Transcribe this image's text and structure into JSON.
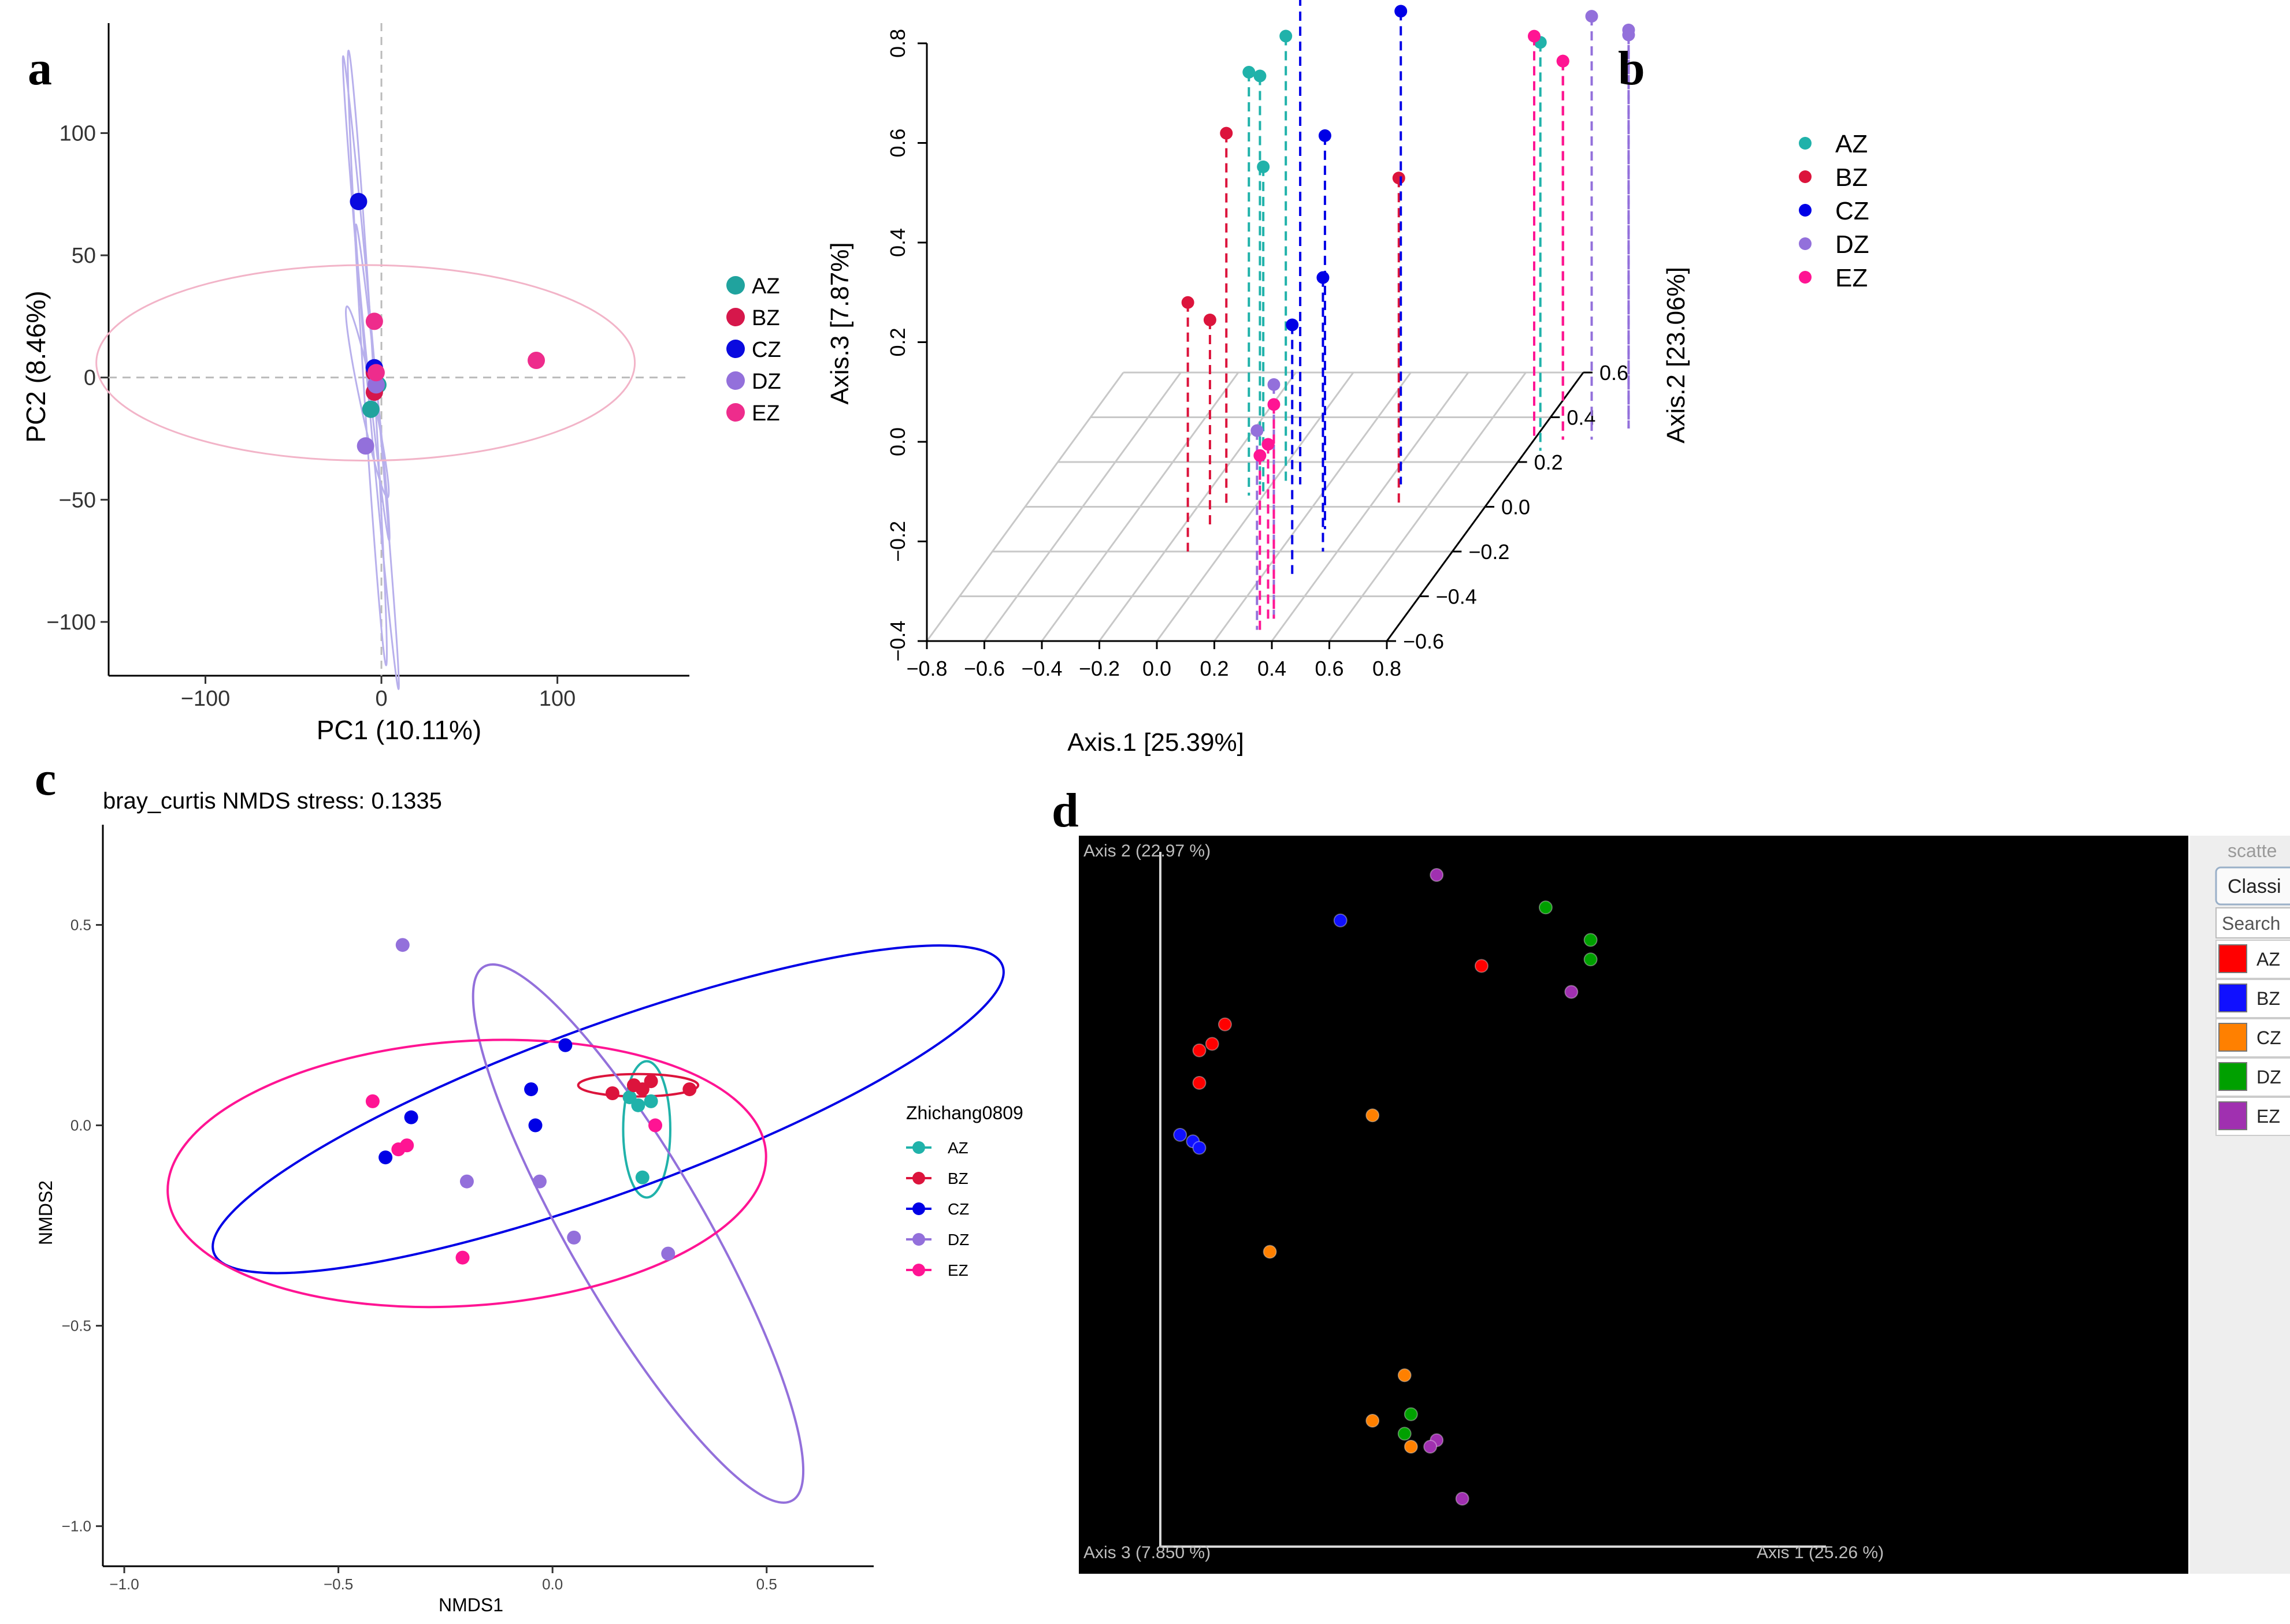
{
  "panels": {
    "a": {
      "label": "a"
    },
    "b": {
      "label": "b"
    },
    "c": {
      "label": "c"
    },
    "d": {
      "label": "d"
    }
  },
  "chart_data": [
    {
      "id": "a",
      "type": "scatter",
      "title": "",
      "xlabel": "PC1 (10.11%)",
      "ylabel": "PC2 (8.46%)",
      "xlim": [
        -155,
        175
      ],
      "ylim": [
        -122,
        145
      ],
      "xticks": [
        -100,
        0,
        100
      ],
      "yticks": [
        100,
        50,
        0,
        -50,
        -100
      ],
      "legend": {
        "position": "right",
        "items": [
          "AZ",
          "BZ",
          "CZ",
          "DZ",
          "EZ"
        ]
      },
      "colors": {
        "AZ": "#20a39e",
        "BZ": "#d6174b",
        "CZ": "#0a0adf",
        "DZ": "#9370db",
        "EZ": "#ee2c8c"
      },
      "series": [
        {
          "name": "AZ",
          "points": [
            [
              -2,
              -3
            ],
            [
              -6,
              -13
            ]
          ]
        },
        {
          "name": "BZ",
          "points": [
            [
              -4,
              2
            ],
            [
              -4,
              -6
            ]
          ]
        },
        {
          "name": "CZ",
          "points": [
            [
              -13,
              72
            ],
            [
              -4,
              4
            ]
          ]
        },
        {
          "name": "DZ",
          "points": [
            [
              -3,
              -3
            ],
            [
              -9,
              -28
            ]
          ]
        },
        {
          "name": "EZ",
          "points": [
            [
              -4,
              23
            ],
            [
              -3,
              2
            ],
            [
              88,
              7
            ]
          ]
        }
      ],
      "ellipses": [
        {
          "group": "EZ",
          "cx": -9,
          "cy": 6,
          "rx": 153,
          "ry": 40,
          "angle": 0
        }
      ]
    },
    {
      "id": "b",
      "type": "scatter",
      "title": "",
      "xlabel": "Axis.1 [25.39%]",
      "ylabel": "Axis.3 [7.87%]",
      "zlabel": "Axis.2 [23.06%]",
      "xticks": [
        -0.8,
        -0.6,
        -0.4,
        -0.2,
        0.0,
        0.2,
        0.4,
        0.6,
        0.8
      ],
      "zticks": [
        0.8,
        0.6,
        0.4,
        0.2,
        0.0,
        -0.2,
        -0.4
      ],
      "yticks": [
        0.6,
        0.4,
        0.2,
        0.0,
        -0.2,
        -0.4,
        -0.6
      ],
      "x_tick_labels": [
        "−0.8",
        "−0.6",
        "−0.4",
        "−0.2",
        "0.0",
        "0.2",
        "0.4",
        "0.6",
        "0.8"
      ],
      "z_tick_labels": [
        "0.8",
        "0.6",
        "0.4",
        "0.2",
        "0.0",
        "−0.2",
        "−0.4"
      ],
      "y_tick_labels": [
        "0.6",
        "0.4",
        "0.2",
        "0.0",
        "−0.2",
        "−0.4",
        "−0.6"
      ],
      "legend": {
        "position": "top-right",
        "items": [
          "AZ",
          "BZ",
          "CZ",
          "DZ",
          "EZ"
        ]
      },
      "colors": {
        "AZ": "#20b2aa",
        "BZ": "#dc143c",
        "CZ": "#0000e6",
        "DZ": "#9370db",
        "EZ": "#ff1493"
      },
      "series": [
        {
          "name": "AZ",
          "points": [
            [
              -0.05,
              0.05,
              0.45
            ],
            [
              -0.04,
              0.1,
              0.42
            ],
            [
              0.05,
              0.1,
              0.5
            ],
            [
              0.0,
              0.05,
              0.26
            ],
            [
              0.85,
              0.25,
              0.42
            ]
          ]
        },
        {
          "name": "BZ",
          "points": [
            [
              -0.1,
              0.0,
              0.35
            ],
            [
              -0.12,
              -0.2,
              0.1
            ],
            [
              -0.1,
              -0.1,
              0.02
            ],
            [
              0.5,
              0.0,
              0.26
            ],
            [
              0.9,
              0.3,
              0.36
            ]
          ]
        },
        {
          "name": "CZ",
          "points": [
            [
              0.1,
              0.1,
              0.7
            ],
            [
              0.3,
              -0.1,
              0.39
            ],
            [
              0.45,
              0.1,
              0.55
            ],
            [
              0.35,
              -0.2,
              0.15
            ],
            [
              0.3,
              -0.3,
              0.1
            ]
          ]
        },
        {
          "name": "DZ",
          "points": [
            [
              0.35,
              -0.5,
              0.07
            ],
            [
              0.32,
              -0.55,
              0.0
            ],
            [
              1.0,
              0.3,
              0.45
            ],
            [
              1.1,
              0.35,
              0.4
            ],
            [
              1.1,
              0.35,
              0.39
            ]
          ]
        },
        {
          "name": "EZ",
          "points": [
            [
              0.35,
              -0.5,
              0.03
            ],
            [
              0.33,
              -0.5,
              -0.05
            ],
            [
              0.33,
              -0.55,
              -0.05
            ],
            [
              0.8,
              0.3,
              0.41
            ],
            [
              0.9,
              0.3,
              0.36
            ]
          ]
        }
      ]
    },
    {
      "id": "c",
      "type": "scatter",
      "title": "bray_curtis NMDS stress: 0.1335",
      "xlabel": "NMDS1",
      "ylabel": "NMDS2",
      "xlim": [
        -1.05,
        0.75
      ],
      "ylim": [
        -1.1,
        0.75
      ],
      "xticks": [
        -1.0,
        -0.5,
        0.0,
        0.5
      ],
      "yticks": [
        0.5,
        0.0,
        -0.5,
        -1.0
      ],
      "x_tick_labels": [
        "−1.0",
        "−0.5",
        "0.0",
        "0.5"
      ],
      "y_tick_labels": [
        "0.5",
        "0.0",
        "−0.5",
        "−1.0"
      ],
      "legend": {
        "position": "right",
        "title": "Zhichang0809",
        "items": [
          "AZ",
          "BZ",
          "CZ",
          "DZ",
          "EZ"
        ]
      },
      "colors": {
        "AZ": "#20b2aa",
        "BZ": "#dc143c",
        "CZ": "#0000e6",
        "DZ": "#9370db",
        "EZ": "#ff1493"
      },
      "series": [
        {
          "name": "AZ",
          "points": [
            [
              0.18,
              0.07
            ],
            [
              0.2,
              0.05
            ],
            [
              0.23,
              0.06
            ],
            [
              0.21,
              -0.13
            ]
          ]
        },
        {
          "name": "BZ",
          "points": [
            [
              0.14,
              0.08
            ],
            [
              0.19,
              0.1
            ],
            [
              0.21,
              0.09
            ],
            [
              0.23,
              0.11
            ],
            [
              0.32,
              0.09
            ]
          ]
        },
        {
          "name": "CZ",
          "points": [
            [
              -0.33,
              0.02
            ],
            [
              -0.39,
              -0.08
            ],
            [
              -0.05,
              0.09
            ],
            [
              -0.04,
              0.0
            ],
            [
              0.03,
              0.2
            ]
          ]
        },
        {
          "name": "DZ",
          "points": [
            [
              -0.35,
              0.45
            ],
            [
              -0.2,
              -0.14
            ],
            [
              -0.03,
              -0.14
            ],
            [
              0.05,
              -0.28
            ],
            [
              0.27,
              -0.32
            ]
          ]
        },
        {
          "name": "EZ",
          "points": [
            [
              -0.42,
              0.06
            ],
            [
              -0.36,
              -0.06
            ],
            [
              -0.34,
              -0.05
            ],
            [
              -0.21,
              -0.33
            ],
            [
              0.24,
              0.0
            ]
          ]
        }
      ],
      "ellipses": [
        {
          "group": "AZ",
          "cx": 0.22,
          "cy": -0.01,
          "rx": 0.055,
          "ry": 0.17,
          "angle": 0
        },
        {
          "group": "BZ",
          "cx": 0.2,
          "cy": 0.1,
          "rx": 0.14,
          "ry": 0.028,
          "angle": 0
        },
        {
          "group": "CZ",
          "cx": 0.13,
          "cy": 0.04,
          "rx": 0.98,
          "ry": 0.21,
          "angle": -20
        },
        {
          "group": "DZ",
          "cx": 0.2,
          "cy": -0.27,
          "rx": 0.72,
          "ry": 0.17,
          "angle": 60
        },
        {
          "group": "EZ",
          "cx": -0.2,
          "cy": -0.12,
          "rx": 0.7,
          "ry": 0.33,
          "angle": -4
        }
      ]
    },
    {
      "id": "d",
      "type": "scatter",
      "title": "",
      "axis_labels": {
        "x": "Axis 1 (25.26 %)",
        "y": "Axis 2 (22.97 %)",
        "z": "Axis 3 (7.850 %)"
      },
      "background": "#000000",
      "legend": {
        "position": "right",
        "items": [
          "AZ",
          "BZ",
          "CZ",
          "DZ",
          "EZ"
        ]
      },
      "colors": {
        "AZ": "#ff0000",
        "BZ": "#1010ff",
        "CZ": "#ff8000",
        "DZ": "#00a000",
        "EZ": "#a030b0"
      },
      "series": [
        {
          "name": "AZ",
          "points": [
            [
              0.05,
              0.73
            ],
            [
              0.07,
              0.74
            ],
            [
              0.09,
              0.77
            ],
            [
              0.05,
              0.68
            ],
            [
              0.49,
              0.86
            ]
          ]
        },
        {
          "name": "BZ",
          "points": [
            [
              0.02,
              0.6
            ],
            [
              0.04,
              0.59
            ],
            [
              0.05,
              0.58
            ],
            [
              0.27,
              0.93
            ]
          ]
        },
        {
          "name": "CZ",
          "points": [
            [
              0.32,
              0.63
            ],
            [
              0.16,
              0.42
            ],
            [
              0.32,
              0.16
            ],
            [
              0.37,
              0.23
            ],
            [
              0.38,
              0.12
            ]
          ]
        },
        {
          "name": "DZ",
          "points": [
            [
              0.59,
              0.95
            ],
            [
              0.66,
              0.9
            ],
            [
              0.66,
              0.87
            ],
            [
              0.38,
              0.17
            ],
            [
              0.37,
              0.14
            ]
          ]
        },
        {
          "name": "EZ",
          "points": [
            [
              0.42,
              1.0
            ],
            [
              0.63,
              0.82
            ],
            [
              0.42,
              0.13
            ],
            [
              0.41,
              0.12
            ],
            [
              0.46,
              0.04
            ]
          ]
        }
      ],
      "sidebar": {
        "mode_label": "scatte",
        "select_value": "Classi",
        "search_placeholder": "Search"
      }
    }
  ]
}
